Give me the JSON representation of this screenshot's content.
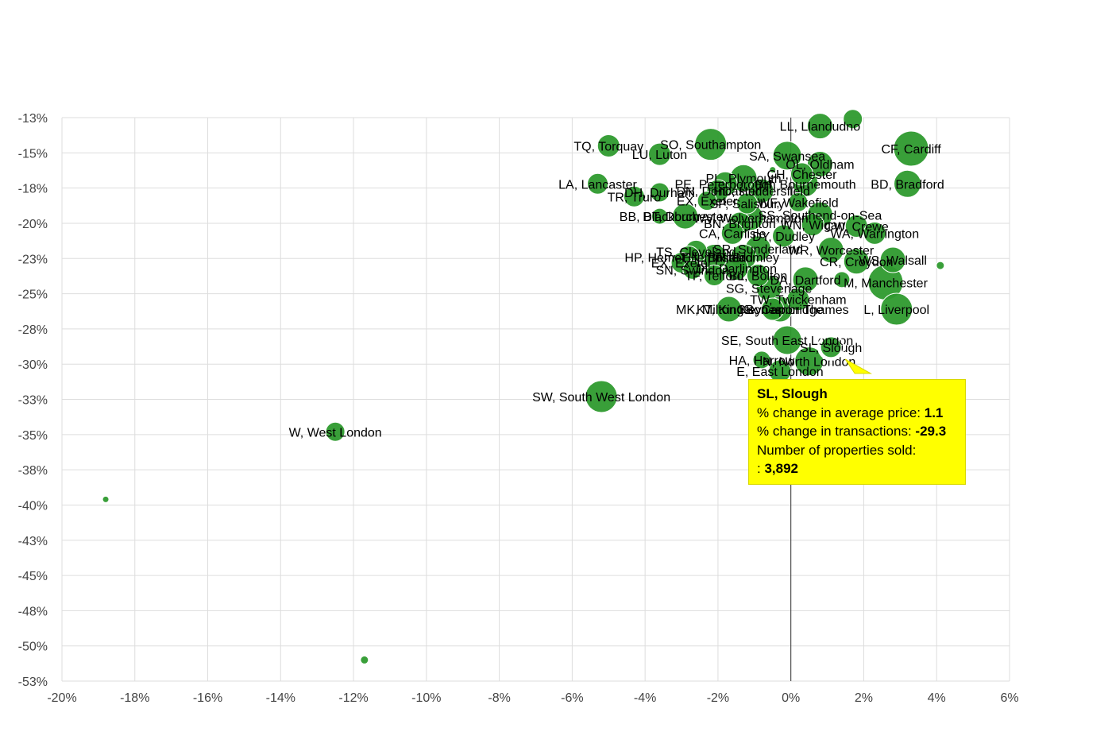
{
  "colors": {
    "bubble": "#2e9a2e",
    "bubble_stroke": "#ffffff",
    "grid": "#dddddd",
    "axis_line": "#333333",
    "tooltip_bg": "#ffff00"
  },
  "chart_data": {
    "type": "scatter",
    "title": "",
    "xlabel": "",
    "ylabel": "",
    "xlim": [
      -20,
      6
    ],
    "ylim": [
      -53,
      -13
    ],
    "x_ticks": [
      "-20%",
      "-18%",
      "-16%",
      "-14%",
      "-12%",
      "-10%",
      "-8%",
      "-6%",
      "-4%",
      "-2%",
      "0%",
      "2%",
      "4%",
      "6%"
    ],
    "x_tick_values": [
      -20,
      -18,
      -16,
      -14,
      -12,
      -10,
      -8,
      -6,
      -4,
      -2,
      0,
      2,
      4,
      6
    ],
    "y_ticks": [
      "-13%",
      "-15%",
      "-18%",
      "-20%",
      "-23%",
      "-25%",
      "-28%",
      "-30%",
      "-33%",
      "-35%",
      "-38%",
      "-40%",
      "-43%",
      "-45%",
      "-48%",
      "-50%",
      "-53%"
    ],
    "y_tick_values": [
      -13,
      -15.5,
      -18,
      -20.5,
      -23,
      -25.5,
      -28,
      -30.5,
      -33,
      -35.5,
      -38,
      -40.5,
      -43,
      -45.5,
      -48,
      -50.5,
      -53
    ],
    "grid": true,
    "zero_line_x": 0,
    "points": [
      {
        "label": "W, West London",
        "x": -12.5,
        "y": -35.3,
        "r": 12
      },
      {
        "label": "SW, South West London",
        "x": -5.2,
        "y": -32.8,
        "r": 20
      },
      {
        "label": "",
        "x": -18.8,
        "y": -40.1,
        "r": 4
      },
      {
        "label": "",
        "x": -11.7,
        "y": -51.5,
        "r": 5
      },
      {
        "label": "",
        "x": 4.1,
        "y": -23.5,
        "r": 5
      },
      {
        "label": "SL, Slough",
        "x": 1.1,
        "y": -29.3,
        "r": 13
      },
      {
        "label": "SE, South East London",
        "x": -0.1,
        "y": -28.8,
        "r": 18
      },
      {
        "label": "HA, Harrow",
        "x": -0.8,
        "y": -30.2,
        "r": 11
      },
      {
        "label": "N, North London",
        "x": 0.5,
        "y": -30.3,
        "r": 18
      },
      {
        "label": "E, East London",
        "x": -0.3,
        "y": -31.0,
        "r": 14
      },
      {
        "label": "LL, Llandudno",
        "x": 0.8,
        "y": -13.6,
        "r": 16
      },
      {
        "label": "",
        "x": 1.7,
        "y": -13.1,
        "r": 12
      },
      {
        "label": "CF, Cardiff",
        "x": 3.3,
        "y": -15.2,
        "r": 22
      },
      {
        "label": "BD, Bradford",
        "x": 3.2,
        "y": -17.7,
        "r": 17
      },
      {
        "label": "TQ, Torquay",
        "x": -5.0,
        "y": -15.0,
        "r": 14
      },
      {
        "label": "SO, Southampton",
        "x": -2.2,
        "y": -14.9,
        "r": 20
      },
      {
        "label": "LU, Luton",
        "x": -3.6,
        "y": -15.6,
        "r": 14
      },
      {
        "label": "SA, Swansea",
        "x": -0.1,
        "y": -15.7,
        "r": 18
      },
      {
        "label": "OL, Oldham",
        "x": 0.8,
        "y": -16.3,
        "r": 16
      },
      {
        "label": "CH, Chester",
        "x": 0.3,
        "y": -17.0,
        "r": 14
      },
      {
        "label": "LA, Lancaster",
        "x": -5.3,
        "y": -17.7,
        "r": 13
      },
      {
        "label": "PL, Plymouth",
        "x": -1.3,
        "y": -17.3,
        "r": 17
      },
      {
        "label": "PE, Peterborough",
        "x": -1.8,
        "y": -17.7,
        "r": 15
      },
      {
        "label": "BH, Bournemouth",
        "x": 0.4,
        "y": -17.7,
        "r": 16
      },
      {
        "label": "TR, Truro",
        "x": -4.3,
        "y": -18.6,
        "r": 13
      },
      {
        "label": "DH, Durham",
        "x": -3.6,
        "y": -18.3,
        "r": 12
      },
      {
        "label": "DN, Doncaster",
        "x": -2.0,
        "y": -18.2,
        "r": 14
      },
      {
        "label": "HD, Huddersfield",
        "x": -0.8,
        "y": -18.2,
        "r": 15
      },
      {
        "label": "EX, Exeter",
        "x": -2.3,
        "y": -18.9,
        "r": 12
      },
      {
        "label": "SP, Salisbury",
        "x": -1.2,
        "y": -19.1,
        "r": 13
      },
      {
        "label": "WF, Wakefield",
        "x": 0.2,
        "y": -19.0,
        "r": 12
      },
      {
        "label": "",
        "x": -0.5,
        "y": -16.7,
        "r": 4
      },
      {
        "label": "BB, Blackburn",
        "x": -3.6,
        "y": -20.0,
        "r": 10
      },
      {
        "label": "DT, Dorchester",
        "x": -2.9,
        "y": -20.0,
        "r": 16
      },
      {
        "label": "WV, Wolverhampton",
        "x": -1.1,
        "y": -20.1,
        "r": 16
      },
      {
        "label": "SS, Southend-on-Sea",
        "x": 0.8,
        "y": -19.9,
        "r": 16
      },
      {
        "label": "WN, Wigan",
        "x": 0.6,
        "y": -20.6,
        "r": 14
      },
      {
        "label": "CW, Crewe",
        "x": 1.8,
        "y": -20.7,
        "r": 14
      },
      {
        "label": "BN, Brighton",
        "x": -1.4,
        "y": -20.5,
        "r": 14
      },
      {
        "label": "CA, Carlisle",
        "x": -1.6,
        "y": -21.2,
        "r": 14
      },
      {
        "label": "DY, Dudley",
        "x": -0.2,
        "y": -21.4,
        "r": 14
      },
      {
        "label": "WA, Warrington",
        "x": 2.3,
        "y": -21.2,
        "r": 14
      },
      {
        "label": "SR, Sunderland",
        "x": -0.9,
        "y": -22.3,
        "r": 16
      },
      {
        "label": "WR, Worcester",
        "x": 1.1,
        "y": -22.4,
        "r": 16
      },
      {
        "label": "TS, Cleveland",
        "x": -2.6,
        "y": -22.5,
        "r": 14
      },
      {
        "label": "HP, Hemel Hempstead",
        "x": -2.8,
        "y": -22.9,
        "r": 14
      },
      {
        "label": "EN, Enfield",
        "x": -2.1,
        "y": -22.9,
        "r": 16
      },
      {
        "label": "BR, Bromley",
        "x": -1.3,
        "y": -22.9,
        "r": 16
      },
      {
        "label": "CR, Croydon",
        "x": 1.8,
        "y": -23.2,
        "r": 16
      },
      {
        "label": "WS, Walsall",
        "x": 2.8,
        "y": -23.1,
        "r": 16
      },
      {
        "label": "EX, Exeter",
        "x": -3.0,
        "y": -23.3,
        "r": 13
      },
      {
        "label": "SN, Swindon",
        "x": -2.7,
        "y": -23.8,
        "r": 12
      },
      {
        "label": "DL, Darlington",
        "x": -1.5,
        "y": -23.7,
        "r": 15
      },
      {
        "label": "TF, Telford",
        "x": -2.1,
        "y": -24.2,
        "r": 13
      },
      {
        "label": "BL, Bolton",
        "x": -0.9,
        "y": -24.2,
        "r": 14
      },
      {
        "label": "DA, Dartford",
        "x": 0.4,
        "y": -24.5,
        "r": 16
      },
      {
        "label": "M, Manchester",
        "x": 2.6,
        "y": -24.7,
        "r": 22
      },
      {
        "label": "SG, Stevenage",
        "x": -0.6,
        "y": -25.1,
        "r": 16
      },
      {
        "label": "",
        "x": 1.4,
        "y": -24.5,
        "r": 10
      },
      {
        "label": "TW, Twickenham",
        "x": 0.2,
        "y": -25.9,
        "r": 14
      },
      {
        "label": "MK, Milton Keynes",
        "x": -1.7,
        "y": -26.6,
        "r": 16
      },
      {
        "label": "KT, Kingston upon Thames",
        "x": -0.5,
        "y": -26.6,
        "r": 14
      },
      {
        "label": "CB, Cambridge",
        "x": -0.3,
        "y": -26.6,
        "r": 16
      },
      {
        "label": "L, Liverpool",
        "x": 2.9,
        "y": -26.6,
        "r": 20
      }
    ]
  },
  "tooltip": {
    "title": "SL, Slough",
    "line1_label": "% change in average price: ",
    "line1_value": "1.1",
    "line2_label": "% change in transactions: ",
    "line2_value": "-29.3",
    "line3_label": "Number of properties sold:",
    "line4_prefix": ": ",
    "line4_value": "3,892"
  }
}
